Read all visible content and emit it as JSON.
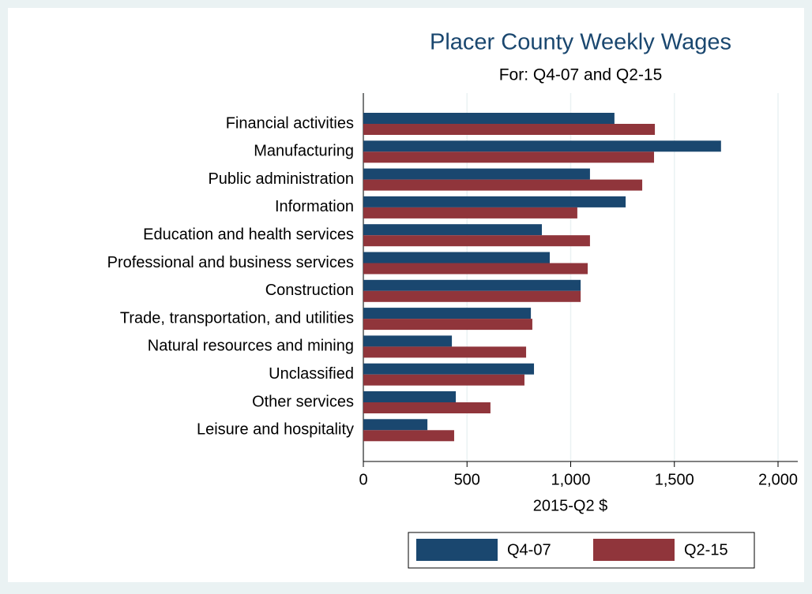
{
  "chart_data": {
    "type": "hbar",
    "title": "Placer County Weekly Wages",
    "subtitle": "For: Q4-07 and Q2-15",
    "x_label": "2015-Q2 $",
    "categories": [
      "Financial activities",
      "Manufacturing",
      "Public administration",
      "Information",
      "Education and health services",
      "Professional and business services",
      "Construction",
      "Trade, transportation, and utilities",
      "Natural resources and mining",
      "Unclassified",
      "Other services",
      "Leisure and hospitality"
    ],
    "series": [
      {
        "name": "Q4-07",
        "color": "#1a476f",
        "values": [
          1211,
          1725,
          1093,
          1265,
          861,
          899,
          1048,
          808,
          427,
          823,
          446,
          309
        ]
      },
      {
        "name": "Q2-15",
        "color": "#90353b",
        "values": [
          1406,
          1402,
          1345,
          1032,
          1093,
          1082,
          1048,
          815,
          785,
          777,
          613,
          438
        ]
      }
    ],
    "xlim": [
      0,
      2000
    ],
    "xticks": [
      0,
      500,
      {
        "value": 1000,
        "label": "1,000"
      },
      {
        "value": 1500,
        "label": "1,500"
      },
      {
        "value": 2000,
        "label": "2,000"
      }
    ],
    "grid": true,
    "legend": "bottom"
  }
}
